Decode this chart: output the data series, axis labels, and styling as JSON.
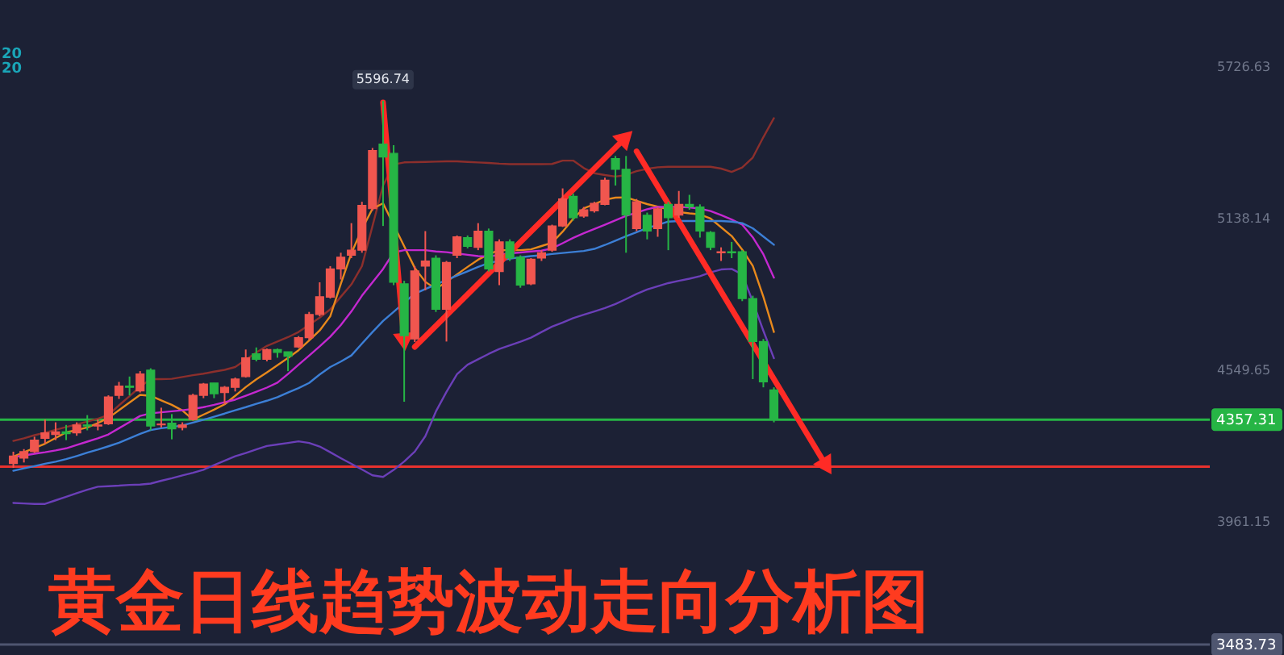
{
  "chart_data": {
    "type": "candlestick",
    "title": "黄金日线趋势波动走向分析图",
    "categories": [
      null,
      null,
      null,
      null,
      null,
      null,
      null,
      null,
      null,
      null,
      null,
      null,
      null,
      null,
      null,
      null,
      null,
      null,
      null,
      null,
      null,
      null,
      null,
      null,
      null,
      null,
      null,
      null,
      null,
      null,
      null,
      null,
      null,
      null,
      null,
      null,
      null,
      null,
      null,
      null,
      null,
      null,
      null,
      null,
      null,
      null,
      null,
      null,
      null,
      null,
      null,
      null,
      null,
      null,
      null,
      null,
      null,
      null,
      null,
      null,
      null,
      null,
      null,
      null,
      null,
      null,
      null,
      null,
      null,
      null,
      null,
      null,
      null,
      null,
      null,
      null,
      null,
      null,
      null,
      null,
      null,
      null,
      null,
      null,
      null,
      null,
      null,
      null,
      null,
      null,
      null,
      null,
      null,
      null,
      null,
      null,
      null,
      null,
      null,
      null,
      null,
      null,
      null,
      null,
      null,
      null,
      null,
      null,
      null,
      null,
      null,
      null,
      null
    ],
    "ohlc": [
      [
        4187,
        4233,
        4170,
        4216
      ],
      [
        4208,
        4243,
        4191,
        4233
      ],
      [
        4233,
        4291,
        4228,
        4278
      ],
      [
        4285,
        4358,
        4264,
        4306
      ],
      [
        4300,
        4347,
        4278,
        4310
      ],
      [
        4310,
        4337,
        4278,
        4303
      ],
      [
        4306,
        4347,
        4295,
        4337
      ],
      [
        4337,
        4375,
        4316,
        4333
      ],
      [
        4333,
        4358,
        4316,
        4337
      ],
      [
        4341,
        4452,
        4337,
        4446
      ],
      [
        4452,
        4504,
        4438,
        4488
      ],
      [
        4488,
        4525,
        4452,
        4483
      ],
      [
        4469,
        4546,
        4463,
        4535
      ],
      [
        4550,
        4557,
        4316,
        4333
      ],
      [
        4337,
        4404,
        4327,
        4341
      ],
      [
        4344,
        4379,
        4281,
        4322
      ],
      [
        4327,
        4347,
        4316,
        4337
      ],
      [
        4358,
        4458,
        4354,
        4452
      ],
      [
        4452,
        4500,
        4441,
        4496
      ],
      [
        4500,
        4500,
        4441,
        4458
      ],
      [
        4463,
        4488,
        4416,
        4483
      ],
      [
        4483,
        4521,
        4467,
        4515
      ],
      [
        4525,
        4630,
        4521,
        4598
      ],
      [
        4613,
        4638,
        4584,
        4592
      ],
      [
        4592,
        4634,
        4584,
        4630
      ],
      [
        4630,
        4634,
        4598,
        4619
      ],
      [
        4621,
        4621,
        4546,
        4604
      ],
      [
        4640,
        4682,
        4636,
        4676
      ],
      [
        4676,
        4776,
        4667,
        4766
      ],
      [
        4766,
        4891,
        4759,
        4835
      ],
      [
        4833,
        4954,
        4828,
        4943
      ],
      [
        4943,
        5006,
        4902,
        4989
      ],
      [
        4996,
        5121,
        4985,
        5016
      ],
      [
        5016,
        5204,
        5006,
        5190
      ],
      [
        5177,
        5413,
        5169,
        5403
      ],
      [
        5428,
        5596.74,
        5110,
        5378
      ],
      [
        5392,
        5424,
        4880,
        4891
      ],
      [
        4885,
        4897,
        4427,
        4684
      ],
      [
        4671,
        4954,
        4659,
        4935
      ],
      [
        4954,
        5090,
        4860,
        4974
      ],
      [
        4985,
        4996,
        4776,
        4786
      ],
      [
        4786,
        4974,
        4661,
        4968
      ],
      [
        4996,
        5073,
        4985,
        5068
      ],
      [
        5065,
        5073,
        5023,
        5031
      ],
      [
        5027,
        5121,
        5016,
        5090
      ],
      [
        5090,
        5100,
        4933,
        4943
      ],
      [
        4933,
        5058,
        4880,
        5048
      ],
      [
        5048,
        5058,
        4974,
        4985
      ],
      [
        4989,
        4996,
        4870,
        4880
      ],
      [
        4885,
        4985,
        4880,
        4981
      ],
      [
        4985,
        5016,
        4974,
        5006
      ],
      [
        5016,
        5115,
        5010,
        5110
      ],
      [
        5110,
        5256,
        5106,
        5215
      ],
      [
        5225,
        5236,
        5131,
        5142
      ],
      [
        5148,
        5184,
        5142,
        5173
      ],
      [
        5169,
        5204,
        5162,
        5198
      ],
      [
        5194,
        5298,
        5190,
        5288
      ],
      [
        5372,
        5382,
        5267,
        5330
      ],
      [
        5330,
        5382,
        5006,
        5152
      ],
      [
        5100,
        5215,
        5090,
        5204
      ],
      [
        5152,
        5162,
        5058,
        5090
      ],
      [
        5100,
        5184,
        5068,
        5177
      ],
      [
        5194,
        5204,
        5016,
        5142
      ],
      [
        5152,
        5246,
        5142,
        5194
      ],
      [
        5194,
        5231,
        5173,
        5184
      ],
      [
        5184,
        5194,
        5065,
        5090
      ],
      [
        5085,
        5090,
        5016,
        5027
      ],
      [
        5006,
        5027,
        4974,
        5010
      ],
      [
        5010,
        5048,
        4985,
        5006
      ],
      [
        5010,
        5016,
        4818,
        4828
      ],
      [
        4828,
        4839,
        4515,
        4661
      ],
      [
        4661,
        4671,
        4483,
        4504
      ],
      [
        4473,
        4483,
        4347,
        4357.31
      ],
      null,
      null,
      null,
      null,
      null,
      null,
      null,
      null,
      null,
      null,
      null,
      null,
      null,
      null,
      null,
      null,
      null,
      null,
      null,
      null,
      null,
      null,
      null,
      null,
      null,
      null,
      null,
      null,
      null,
      null,
      null,
      null,
      null,
      null,
      null,
      null,
      null,
      null,
      null,
      null
    ],
    "colors": [
      "#f0564f",
      "#f0564f",
      "#f0564f",
      "#f0564f",
      "#f0564f",
      "#26b545",
      "#f0564f",
      "#26b545",
      "#f0564f",
      "#f0564f",
      "#f0564f",
      "#26b545",
      "#f0564f",
      "#26b545",
      "#f0564f",
      "#26b545",
      "#f0564f",
      "#f0564f",
      "#f0564f",
      "#26b545",
      "#f0564f",
      "#f0564f",
      "#f0564f",
      "#26b545",
      "#f0564f",
      "#26b545",
      "#26b545",
      "#f0564f",
      "#f0564f",
      "#f0564f",
      "#f0564f",
      "#f0564f",
      "#f0564f",
      "#f0564f",
      "#f0564f",
      "#26b545",
      "#26b545",
      "#26b545",
      "#f0564f",
      "#f0564f",
      "#26b545",
      "#f0564f",
      "#f0564f",
      "#26b545",
      "#f0564f",
      "#26b545",
      "#f0564f",
      "#26b545",
      "#26b545",
      "#f0564f",
      "#f0564f",
      "#f0564f",
      "#f0564f",
      "#26b545",
      "#f0564f",
      "#f0564f",
      "#f0564f",
      "#26b545",
      "#26b545",
      "#f0564f",
      "#26b545",
      "#f0564f",
      "#26b545",
      "#f0564f",
      "#26b545",
      "#26b545",
      "#26b545",
      "#f0564f",
      "#26b545",
      "#26b545",
      "#26b545",
      "#26b545",
      "#26b545",
      null,
      null,
      null,
      null,
      null,
      null,
      null,
      null,
      null,
      null,
      null,
      null,
      null,
      null,
      null,
      null,
      null,
      null,
      null,
      null,
      null,
      null,
      null,
      null,
      null,
      null,
      null,
      null,
      null,
      null,
      null,
      null,
      null,
      null,
      null,
      null,
      null,
      null,
      null,
      null
    ],
    "series": [
      {
        "type": "line",
        "color": "#8c2f2c",
        "values": [
          4275,
          4285,
          4297,
          4307,
          4318,
          4329,
          4339,
          4350,
          4361,
          4376,
          4413,
          4449,
          4485,
          4515,
          4515,
          4516,
          4523,
          4530,
          4536,
          4544,
          4551,
          4562,
          4590,
          4618,
          4644,
          4661,
          4678,
          4698,
          4726,
          4754,
          4786,
          4835,
          4883,
          4954,
          5110,
          5267,
          5349,
          5357,
          5358,
          5359,
          5360,
          5361,
          5361,
          5359,
          5357,
          5355,
          5352,
          5350,
          5350,
          5350,
          5350,
          5351,
          5364,
          5364,
          5335,
          5315,
          5308,
          5302,
          5308,
          5323,
          5332,
          5338,
          5340,
          5340,
          5340,
          5340,
          5340,
          5333,
          5320,
          5337,
          5376,
          5455,
          5529,
          null,
          null,
          null,
          null,
          null,
          null,
          null,
          null,
          null,
          null,
          null,
          null,
          null,
          null,
          null,
          null,
          null,
          null,
          null,
          null,
          null,
          null,
          null,
          null,
          null,
          null,
          null,
          null,
          null,
          null,
          null,
          null,
          null,
          null,
          null,
          null,
          null,
          null,
          null,
          null
        ]
      },
      {
        "type": "line",
        "color": "#e8891c",
        "values": [
          4214,
          4231,
          4247,
          4264,
          4286,
          4308,
          4317,
          4327,
          4344,
          4364,
          4394,
          4424,
          4454,
          4450,
          4432,
          4415,
          4393,
          4358,
          4377,
          4396,
          4417,
          4450,
          4484,
          4514,
          4541,
          4569,
          4597,
          4627,
          4665,
          4704,
          4759,
          4885,
          5004,
          5098,
          5177,
          5198,
          null,
          5031,
          4947,
          4893,
          4865,
          4893,
          4922,
          4951,
          4979,
          5000,
          5016,
          5016,
          5016,
          5019,
          5032,
          5045,
          5088,
          5138,
          5178,
          5195,
          5212,
          5220,
          5221,
          5208,
          5195,
          5185,
          5174,
          5164,
          5159,
          5155,
          5139,
          5105,
          5071,
          5018,
          4955,
          4835,
          4698,
          null,
          null,
          null,
          null,
          null,
          null,
          null,
          null,
          null,
          null,
          null,
          null,
          null,
          null,
          null,
          null,
          null,
          null,
          null,
          null,
          null,
          null,
          null,
          null,
          null,
          null,
          null,
          null,
          null,
          null,
          null,
          null,
          null,
          null,
          null,
          null,
          null,
          null,
          null,
          null
        ]
      },
      {
        "type": "line",
        "color": "#c428d0",
        "values": [
          4212,
          4218,
          4225,
          4231,
          4238,
          4246,
          4259,
          4272,
          4285,
          4300,
          4324,
          4348,
          4372,
          4382,
          4386,
          4390,
          4394,
          4399,
          4406,
          4415,
          4425,
          4435,
          4450,
          4466,
          4482,
          4501,
          4535,
          4571,
          4606,
          4642,
          4680,
          4725,
          4778,
          4839,
          4891,
          4943,
          5007,
          5016,
          5016,
          5016,
          5011,
          5008,
          5003,
          4998,
          4993,
          4991,
          4998,
          5004,
          5007,
          5011,
          5014,
          5023,
          5043,
          5064,
          5082,
          5098,
          5115,
          5132,
          5149,
          5162,
          5175,
          5184,
          5184,
          5184,
          5182,
          5177,
          5168,
          5152,
          5135,
          5115,
          5066,
          5000,
          4909,
          null,
          null,
          null,
          null,
          null,
          null,
          null,
          null,
          null,
          null,
          null,
          null,
          null,
          null,
          null,
          null,
          null,
          null,
          null,
          null,
          null,
          null,
          null,
          null,
          null,
          null,
          null,
          null,
          null,
          null,
          null,
          null,
          null,
          null,
          null,
          null,
          null,
          null,
          null,
          null
        ]
      },
      {
        "type": "line",
        "color": "#3c7fd6",
        "values": [
          4159,
          4168,
          4177,
          4186,
          4194,
          4204,
          4216,
          4229,
          4241,
          4254,
          4268,
          4285,
          4302,
          4317,
          4324,
          4329,
          4335,
          4346,
          4357,
          4369,
          4381,
          4394,
          4406,
          4419,
          4431,
          4445,
          4463,
          4480,
          4500,
          4533,
          4562,
          4583,
          4607,
          4653,
          4698,
          4741,
          4776,
          4812,
          4847,
          4865,
          4883,
          4900,
          4917,
          4934,
          4951,
          4966,
          4975,
          4983,
          4988,
          4993,
          4996,
          5001,
          5005,
          5009,
          5013,
          5021,
          5036,
          5053,
          5070,
          5086,
          5102,
          5114,
          5127,
          5129,
          5129,
          5129,
          5129,
          5129,
          5127,
          5121,
          5101,
          5069,
          5037,
          null,
          null,
          null,
          null,
          null,
          null,
          null,
          null,
          null,
          null,
          null,
          null,
          null,
          null,
          null,
          null,
          null,
          null,
          null,
          null,
          null,
          null,
          null,
          null,
          null,
          null,
          null,
          null,
          null,
          null,
          null,
          null,
          null,
          null,
          null,
          null,
          null,
          null,
          null,
          null
        ]
      },
      {
        "type": "line",
        "color": "#6b3fb8",
        "values": [
          4034,
          4032,
          4030,
          4030,
          4044,
          4058,
          4072,
          4085,
          4097,
          4099,
          4101,
          4104,
          4105,
          4109,
          4120,
          4130,
          4141,
          4151,
          4163,
          4181,
          4198,
          4215,
          4228,
          4242,
          4255,
          4261,
          4267,
          4273,
          4267,
          4253,
          4231,
          4208,
          4186,
          4164,
          4141,
          4135,
          4162,
          4195,
          4233,
          4293,
          4389,
          4465,
          4534,
          4571,
          4592,
          4613,
          4632,
          4646,
          4660,
          4676,
          4698,
          4719,
          4735,
          4752,
          4765,
          4778,
          4791,
          4807,
          4826,
          4846,
          4863,
          4876,
          4888,
          4897,
          4905,
          4915,
          4930,
          4941,
          4943,
          4922,
          4816,
          4703,
          4596,
          null,
          null,
          null,
          null,
          null,
          null,
          null,
          null,
          null,
          null,
          null,
          null,
          null,
          null,
          null,
          null,
          null,
          null,
          null,
          null,
          null,
          null,
          null,
          null,
          null,
          null,
          null,
          null,
          null,
          null,
          null,
          null,
          null,
          null,
          null,
          null,
          null,
          null,
          null,
          null
        ]
      },
      {
        "type": "line",
        "color": "#ff2b26",
        "marker": "triangle",
        "values": [
          null,
          null,
          null,
          null,
          null,
          null,
          null,
          null,
          null,
          null,
          null,
          null,
          null,
          null,
          null,
          null,
          null,
          null,
          null,
          null,
          null,
          null,
          null,
          null,
          null,
          null,
          null,
          null,
          null,
          null,
          null,
          null,
          null,
          null,
          null,
          5590,
          null,
          4659,
          null,
          null,
          null,
          null,
          null,
          null,
          null,
          null,
          null,
          null,
          null,
          null,
          null,
          null,
          null,
          null,
          null,
          null,
          null,
          null,
          null,
          null,
          null,
          null,
          null,
          null,
          null,
          null,
          null,
          null,
          null,
          null,
          null,
          null,
          null,
          null,
          null,
          null,
          null,
          null,
          null,
          null,
          null,
          null,
          null,
          null,
          null,
          null,
          null,
          null,
          null,
          null,
          null,
          null,
          null,
          null,
          null,
          null,
          null,
          null,
          null,
          null,
          null,
          null,
          null,
          null,
          null,
          null,
          null,
          null,
          null,
          null,
          null,
          null,
          null
        ]
      },
      {
        "type": "line",
        "color": "#ff2b26",
        "marker": "triangle",
        "values": [
          null,
          null,
          null,
          null,
          null,
          null,
          null,
          null,
          null,
          null,
          null,
          null,
          null,
          null,
          null,
          null,
          null,
          null,
          null,
          null,
          null,
          null,
          null,
          null,
          null,
          null,
          null,
          null,
          null,
          null,
          null,
          null,
          null,
          null,
          null,
          null,
          null,
          null,
          4640,
          null,
          null,
          null,
          null,
          null,
          null,
          null,
          null,
          null,
          null,
          null,
          null,
          null,
          null,
          null,
          null,
          null,
          null,
          null,
          5455,
          null,
          null,
          null,
          null,
          null,
          null,
          null,
          null,
          null,
          null,
          null,
          null,
          null,
          null,
          null,
          null,
          null,
          null,
          null,
          null,
          null,
          null,
          null,
          null,
          null,
          null,
          null,
          null,
          null,
          null,
          null,
          null,
          null,
          null,
          null,
          null,
          null,
          null,
          null,
          null,
          null,
          null,
          null,
          null,
          null,
          null,
          null,
          null,
          null,
          null,
          null,
          null,
          null,
          null
        ]
      },
      {
        "type": "line",
        "color": "#ff2b26",
        "marker": "triangle",
        "values": [
          null,
          null,
          null,
          null,
          null,
          null,
          null,
          null,
          null,
          null,
          null,
          null,
          null,
          null,
          null,
          null,
          null,
          null,
          null,
          null,
          null,
          null,
          null,
          null,
          null,
          null,
          null,
          null,
          null,
          null,
          null,
          null,
          null,
          null,
          null,
          null,
          null,
          null,
          null,
          null,
          null,
          null,
          null,
          null,
          null,
          null,
          null,
          null,
          null,
          null,
          null,
          null,
          null,
          null,
          null,
          null,
          null,
          null,
          null,
          5400,
          null,
          null,
          null,
          null,
          null,
          null,
          null,
          null,
          null,
          null,
          null,
          null,
          null,
          null,
          null,
          null,
          null,
          4175,
          null,
          null,
          null,
          null,
          null,
          null,
          null,
          null,
          null,
          null,
          null,
          null,
          null,
          null,
          null,
          null,
          null,
          null,
          null,
          null,
          null,
          null,
          null,
          null,
          null,
          null,
          null,
          null,
          null,
          null,
          null,
          null,
          null,
          null,
          null
        ]
      }
    ],
    "ylim": [
      3443,
      5988
    ],
    "yticks": [
      3961.15,
      4549.65,
      5138.14,
      5726.63
    ],
    "tick_labels": "y",
    "ref_lines": [
      {
        "axis": "y",
        "value": 4175,
        "color": "#e8322e"
      },
      {
        "axis": "y",
        "value": 4357.31,
        "label": "4357.31",
        "color": "#26b545"
      },
      {
        "axis": "y",
        "value": 3483.73,
        "label": "3483.73",
        "color": "#4f5670"
      }
    ],
    "annotations": [
      "20",
      "20",
      {
        "text": "5596.74",
        "y": 5596.74
      }
    ]
  }
}
